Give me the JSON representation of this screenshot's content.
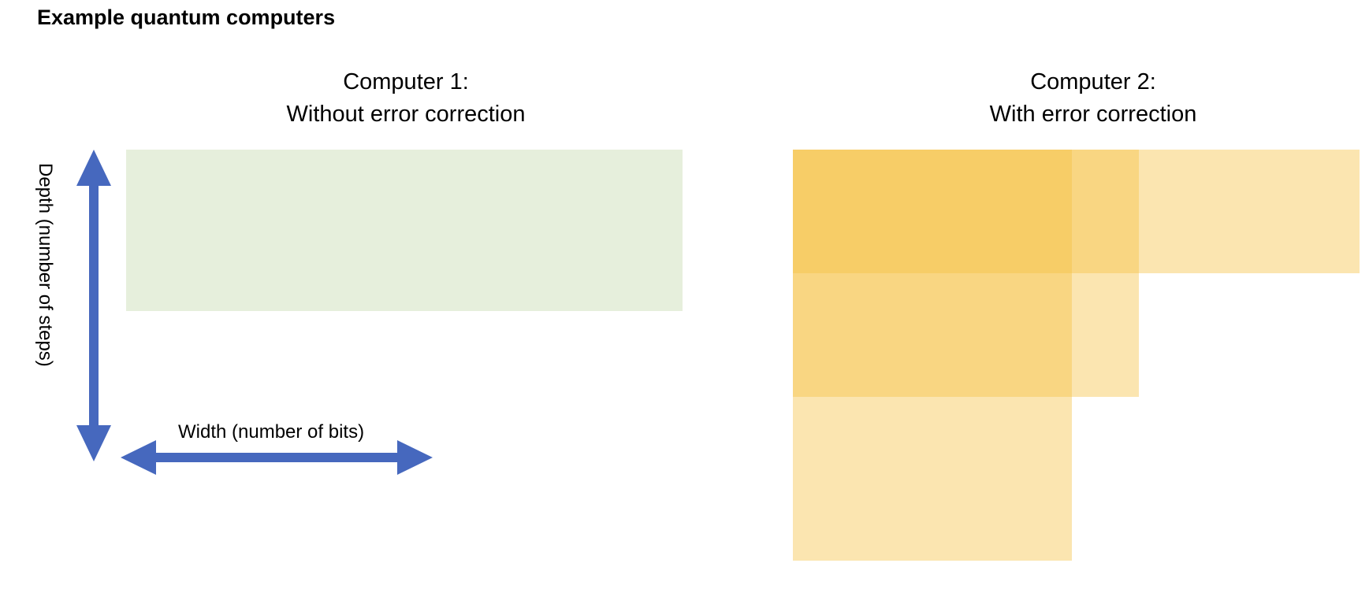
{
  "title": "Example quantum computers",
  "computer1": {
    "heading_line1": "Computer 1:",
    "heading_line2": "Without error correction",
    "block_color": "#e6efdc"
  },
  "computer2": {
    "heading_line1": "Computer 2:",
    "heading_line2": "With error correction",
    "block_color": "#f5c242",
    "block_layers": 3
  },
  "axes": {
    "depth_label": "Depth (number of steps)",
    "width_label": "Width (number of bits)",
    "arrow_color": "#4668be"
  }
}
